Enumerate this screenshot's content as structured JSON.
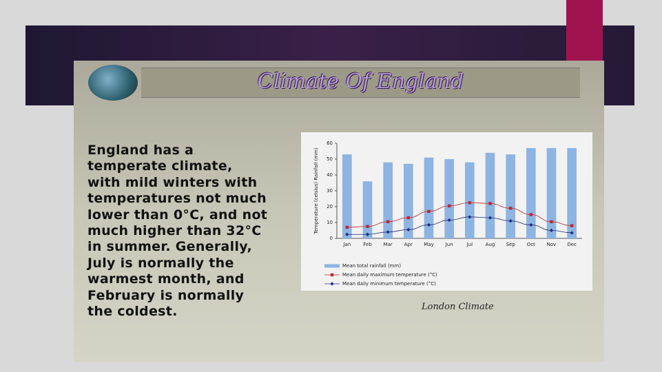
{
  "slide": {
    "title": "Climate Of England",
    "body_lines": [
      "England has a",
      "temperate climate,",
      "with mild winters with",
      "temperatures not much",
      "lower than 0°C, and not",
      "much higher than 32°C",
      "in summer. Generally,",
      "July is normally the",
      "warmest month, and",
      "February is normally",
      "the coldest."
    ],
    "caption": "London Climate"
  },
  "chart_data": {
    "type": "bar_line",
    "y_label": "Temperature (celsius)   Rainfall (mm)",
    "categories": [
      "Jan",
      "Feb",
      "Mar",
      "Apr",
      "May",
      "Jun",
      "Jul",
      "Aug",
      "Sep",
      "Oct",
      "Nov",
      "Dec"
    ],
    "ylim": [
      0,
      60
    ],
    "yticks": [
      0,
      10,
      20,
      30,
      40,
      50,
      60
    ],
    "series": [
      {
        "name": "Mean total rainfall (mm)",
        "kind": "bar",
        "color": "#8db4e2",
        "values": [
          53,
          36,
          48,
          47,
          51,
          50,
          48,
          54,
          53,
          57,
          57,
          57
        ]
      },
      {
        "name": "Mean daily maximum temperature (°C)",
        "kind": "line",
        "color": "#c0272d",
        "values": [
          7,
          7.5,
          10.5,
          13,
          17,
          20.5,
          22.5,
          22,
          19,
          15,
          10.5,
          8
        ]
      },
      {
        "name": "Mean daily minimum temperature (°C)",
        "kind": "line",
        "color": "#1f2a7a",
        "values": [
          2.5,
          2.5,
          4,
          5.5,
          8.5,
          11.5,
          13.5,
          13,
          11,
          8.5,
          5,
          3.5
        ]
      }
    ]
  }
}
